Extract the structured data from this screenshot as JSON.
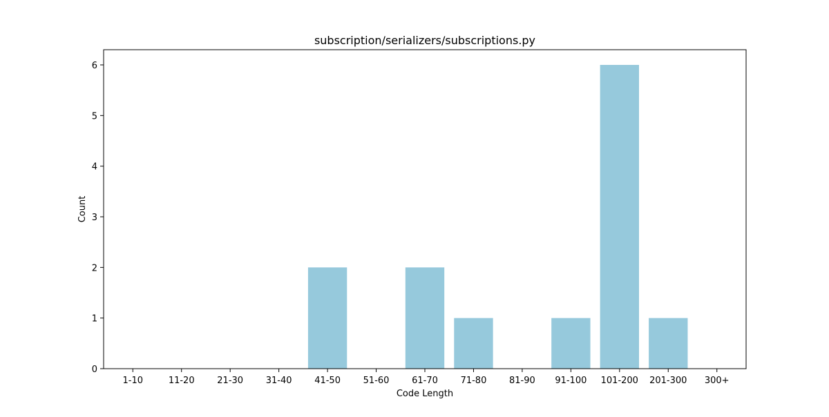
{
  "chart_data": {
    "type": "bar",
    "title": "subscription/serializers/subscriptions.py",
    "xlabel": "Code Length",
    "ylabel": "Count",
    "categories": [
      "1-10",
      "11-20",
      "21-30",
      "31-40",
      "41-50",
      "51-60",
      "61-70",
      "71-80",
      "81-90",
      "91-100",
      "101-200",
      "201-300",
      "300+"
    ],
    "values": [
      0,
      0,
      0,
      0,
      2,
      0,
      2,
      1,
      0,
      1,
      6,
      1,
      0
    ],
    "ylim": [
      0,
      6.3
    ],
    "yticks": [
      0,
      1,
      2,
      3,
      4,
      5,
      6
    ],
    "bar_color": "#96c9dc",
    "grid": false,
    "legend": "none"
  }
}
